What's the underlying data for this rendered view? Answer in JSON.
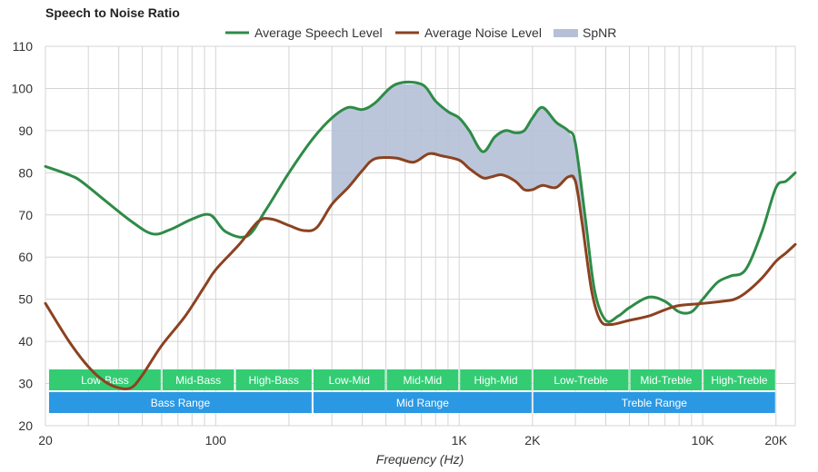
{
  "chart_data": {
    "type": "line",
    "title": "Speech to Noise Ratio",
    "xlabel": "Frequency (Hz)",
    "ylabel": "",
    "xscale": "log",
    "xlim": [
      20,
      24000
    ],
    "ylim": [
      20,
      110
    ],
    "yticks": [
      20,
      30,
      40,
      50,
      60,
      70,
      80,
      90,
      100,
      110
    ],
    "xticks": [
      {
        "value": 20,
        "label": "20"
      },
      {
        "value": 100,
        "label": "100"
      },
      {
        "value": 1000,
        "label": "1K"
      },
      {
        "value": 2000,
        "label": "2K"
      },
      {
        "value": 10000,
        "label": "10K"
      },
      {
        "value": 20000,
        "label": "20K"
      }
    ],
    "grid": true,
    "legend_position": "top-center",
    "series": [
      {
        "name": "Average Speech Level",
        "color": "#2e8b47",
        "points": [
          [
            20,
            81.5
          ],
          [
            25,
            79.5
          ],
          [
            28,
            78
          ],
          [
            35,
            73.5
          ],
          [
            45,
            68.5
          ],
          [
            55,
            65.5
          ],
          [
            65,
            66.5
          ],
          [
            80,
            69
          ],
          [
            95,
            70
          ],
          [
            110,
            66
          ],
          [
            135,
            65
          ],
          [
            160,
            71
          ],
          [
            200,
            80
          ],
          [
            250,
            88
          ],
          [
            300,
            93
          ],
          [
            350,
            95.5
          ],
          [
            400,
            95
          ],
          [
            450,
            96.5
          ],
          [
            550,
            101
          ],
          [
            700,
            101
          ],
          [
            800,
            97
          ],
          [
            900,
            94.5
          ],
          [
            1000,
            93
          ],
          [
            1100,
            90
          ],
          [
            1250,
            85
          ],
          [
            1400,
            88.5
          ],
          [
            1550,
            90
          ],
          [
            1700,
            89.5
          ],
          [
            1850,
            90
          ],
          [
            2000,
            93
          ],
          [
            2200,
            95.5
          ],
          [
            2500,
            92
          ],
          [
            2800,
            90
          ],
          [
            3000,
            87
          ],
          [
            3300,
            69
          ],
          [
            3600,
            52
          ],
          [
            4000,
            45
          ],
          [
            4500,
            46
          ],
          [
            5000,
            48
          ],
          [
            6000,
            50.5
          ],
          [
            7000,
            49.5
          ],
          [
            8000,
            47
          ],
          [
            9000,
            47
          ],
          [
            10000,
            50
          ],
          [
            11500,
            54
          ],
          [
            13000,
            55.5
          ],
          [
            15000,
            57
          ],
          [
            17500,
            66
          ],
          [
            20000,
            76.5
          ],
          [
            22000,
            78
          ],
          [
            24000,
            80
          ]
        ]
      },
      {
        "name": "Average Noise Level",
        "color": "#8b4220",
        "points": [
          [
            20,
            49
          ],
          [
            25,
            40
          ],
          [
            30,
            34
          ],
          [
            35,
            30.5
          ],
          [
            40,
            29
          ],
          [
            45,
            29
          ],
          [
            50,
            32
          ],
          [
            60,
            39
          ],
          [
            75,
            46
          ],
          [
            90,
            53
          ],
          [
            100,
            57
          ],
          [
            125,
            63
          ],
          [
            150,
            68.5
          ],
          [
            170,
            69
          ],
          [
            200,
            67.5
          ],
          [
            230,
            66.3
          ],
          [
            260,
            67
          ],
          [
            300,
            72.5
          ],
          [
            350,
            76.5
          ],
          [
            400,
            80.5
          ],
          [
            450,
            83.3
          ],
          [
            550,
            83.5
          ],
          [
            650,
            82.5
          ],
          [
            750,
            84.5
          ],
          [
            850,
            84
          ],
          [
            1000,
            83
          ],
          [
            1100,
            81
          ],
          [
            1250,
            78.8
          ],
          [
            1350,
            79
          ],
          [
            1500,
            79.5
          ],
          [
            1700,
            78
          ],
          [
            1850,
            76
          ],
          [
            2000,
            76
          ],
          [
            2200,
            77
          ],
          [
            2500,
            76.5
          ],
          [
            2800,
            79
          ],
          [
            3000,
            78
          ],
          [
            3200,
            68
          ],
          [
            3500,
            52
          ],
          [
            3800,
            45
          ],
          [
            4200,
            44
          ],
          [
            5000,
            45
          ],
          [
            6000,
            46
          ],
          [
            7000,
            47.5
          ],
          [
            8000,
            48.5
          ],
          [
            10000,
            49
          ],
          [
            12000,
            49.5
          ],
          [
            13500,
            50
          ],
          [
            15000,
            51.5
          ],
          [
            17500,
            55
          ],
          [
            20000,
            59
          ],
          [
            22000,
            61
          ],
          [
            24000,
            63
          ]
        ]
      }
    ],
    "fill": {
      "name": "SpNR",
      "color": "#b5c0d6",
      "between": [
        "Average Speech Level",
        "Average Noise Level"
      ],
      "x_range": [
        300,
        3300
      ]
    },
    "bands": [
      {
        "label": "Low-Bass",
        "from": 20,
        "to": 60,
        "row": 1,
        "color": "#33cc73"
      },
      {
        "label": "Mid-Bass",
        "from": 60,
        "to": 120,
        "row": 1,
        "color": "#33cc73"
      },
      {
        "label": "High-Bass",
        "from": 120,
        "to": 250,
        "row": 1,
        "color": "#33cc73"
      },
      {
        "label": "Low-Mid",
        "from": 250,
        "to": 500,
        "row": 1,
        "color": "#33cc73"
      },
      {
        "label": "Mid-Mid",
        "from": 500,
        "to": 1000,
        "row": 1,
        "color": "#33cc73"
      },
      {
        "label": "High-Mid",
        "from": 1000,
        "to": 2000,
        "row": 1,
        "color": "#33cc73"
      },
      {
        "label": "Low-Treble",
        "from": 2000,
        "to": 5000,
        "row": 1,
        "color": "#33cc73"
      },
      {
        "label": "Mid-Treble",
        "from": 5000,
        "to": 10000,
        "row": 1,
        "color": "#33cc73"
      },
      {
        "label": "High-Treble",
        "from": 10000,
        "to": 20000,
        "row": 1,
        "color": "#33cc73"
      },
      {
        "label": "Bass Range",
        "from": 20,
        "to": 250,
        "row": 2,
        "color": "#2b98e3"
      },
      {
        "label": "Mid Range",
        "from": 250,
        "to": 2000,
        "row": 2,
        "color": "#2b98e3"
      },
      {
        "label": "Treble Range",
        "from": 2000,
        "to": 20000,
        "row": 2,
        "color": "#2b98e3"
      }
    ]
  }
}
